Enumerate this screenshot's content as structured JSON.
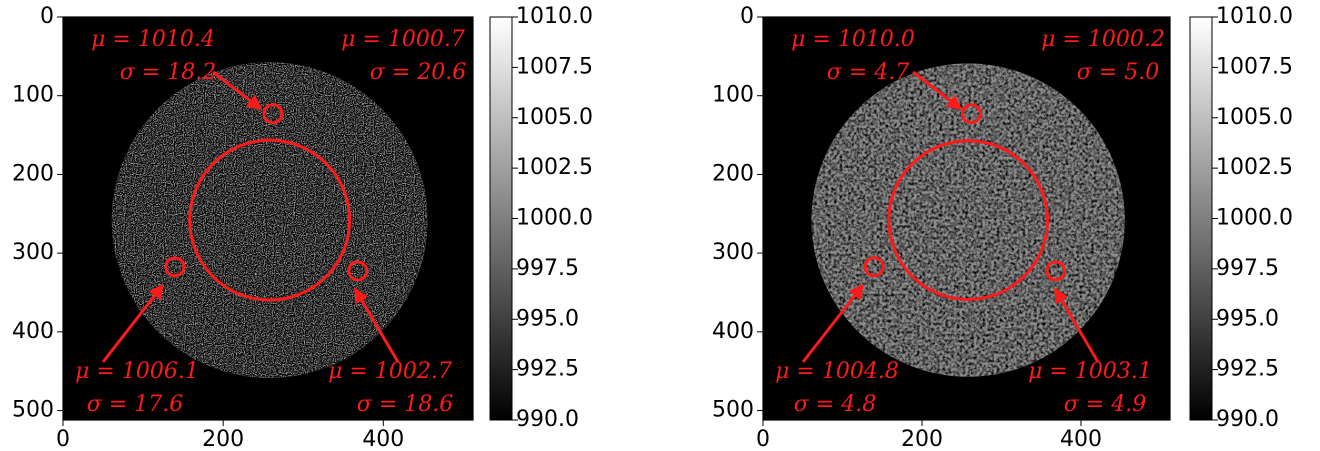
{
  "chart_data": [
    {
      "type": "image",
      "xlim": [
        0,
        512
      ],
      "ylim": [
        512,
        0
      ],
      "xticks": [
        0,
        200,
        400
      ],
      "yticks": [
        0,
        100,
        200,
        300,
        400,
        500
      ],
      "clim": [
        990,
        1010
      ],
      "cticks": [
        {
          "value": 990,
          "label": "990.0"
        },
        {
          "value": 992.5,
          "label": "992.5"
        },
        {
          "value": 995,
          "label": "995.0"
        },
        {
          "value": 997.5,
          "label": "997.5"
        },
        {
          "value": 1000,
          "label": "1000.0"
        },
        {
          "value": 1002.5,
          "label": "1002.5"
        },
        {
          "value": 1005,
          "label": "1005.0"
        },
        {
          "value": 1007.5,
          "label": "1007.5"
        },
        {
          "value": 1010,
          "label": "1010.0"
        }
      ],
      "annotations": [
        {
          "mu": "μ = 1010.4",
          "sigma": "σ = 18.2"
        },
        {
          "mu": "μ = 1000.7",
          "sigma": "σ = 20.6"
        },
        {
          "mu": "μ = 1006.1",
          "sigma": "σ = 17.6"
        },
        {
          "mu": "μ = 1002.7",
          "sigma": "σ = 18.6"
        }
      ]
    },
    {
      "type": "image",
      "xlim": [
        0,
        512
      ],
      "ylim": [
        512,
        0
      ],
      "xticks": [
        0,
        200,
        400
      ],
      "yticks": [
        0,
        100,
        200,
        300,
        400,
        500
      ],
      "clim": [
        990,
        1010
      ],
      "cticks": [
        {
          "value": 990,
          "label": "990.0"
        },
        {
          "value": 992.5,
          "label": "992.5"
        },
        {
          "value": 995,
          "label": "995.0"
        },
        {
          "value": 997.5,
          "label": "997.5"
        },
        {
          "value": 1000,
          "label": "1000.0"
        },
        {
          "value": 1002.5,
          "label": "1002.5"
        },
        {
          "value": 1005,
          "label": "1005.0"
        },
        {
          "value": 1007.5,
          "label": "1007.5"
        },
        {
          "value": 1010,
          "label": "1010.0"
        }
      ],
      "annotations": [
        {
          "mu": "μ = 1010.0",
          "sigma": "σ = 4.7"
        },
        {
          "mu": "μ = 1000.2",
          "sigma": "σ = 5.0"
        },
        {
          "mu": "μ = 1004.8",
          "sigma": "σ = 4.8"
        },
        {
          "mu": "μ = 1003.1",
          "sigma": "σ = 4.9"
        }
      ]
    }
  ]
}
